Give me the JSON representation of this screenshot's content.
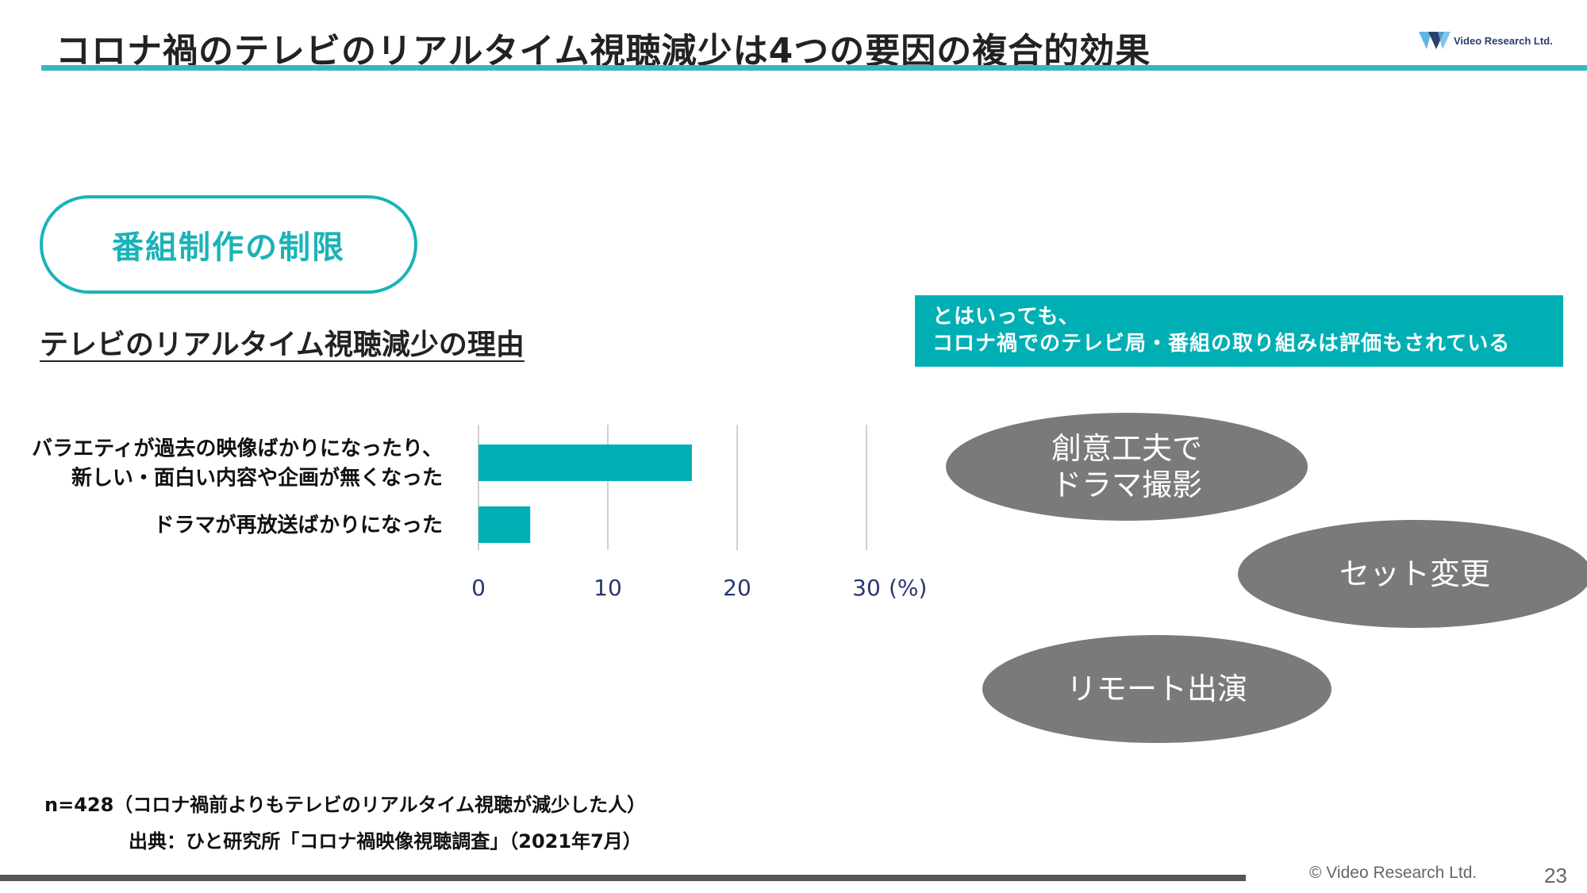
{
  "header": {
    "title": "コロナ禍のテレビのリアルタイム視聴減少は4つの要因の複合的効果",
    "logo_text": "Video Research Ltd.",
    "accent_color": "#38b6c6"
  },
  "section": {
    "pill_label": "番組制作の制限",
    "subtitle": "テレビのリアルタイム視聴減少の理由"
  },
  "banner": {
    "line1": "とはいっても、",
    "line2": "コロナ禍でのテレビ局・番組の取り組みは評価もされている",
    "color": "#00afb4"
  },
  "chart_data": {
    "type": "bar",
    "orientation": "horizontal",
    "categories": [
      [
        "バラエティが過去の映像ばかりになったり、",
        "新しい・面白い内容や企画が無くなった"
      ],
      [
        "ドラマが再放送ばかりになった"
      ]
    ],
    "values": [
      16.5,
      4
    ],
    "xlim": [
      0,
      30
    ],
    "ticks": [
      "0",
      "10",
      "20",
      "30"
    ],
    "unit": "(%)",
    "grid": true,
    "bar_color": "#00afb4"
  },
  "examples": [
    {
      "label": "創意工夫で\nドラマ撮影"
    },
    {
      "label": "セット変更"
    },
    {
      "label": "リモート出演"
    }
  ],
  "notes": {
    "sample": "n=428（コロナ禍前よりもテレビのリアルタイム視聴が減少した人）",
    "source": "出典：ひと研究所「コロナ禍映像視聴調査」（2021年7月）"
  },
  "footer": {
    "copyright": "© Video Research Ltd.",
    "page_number": "23"
  }
}
